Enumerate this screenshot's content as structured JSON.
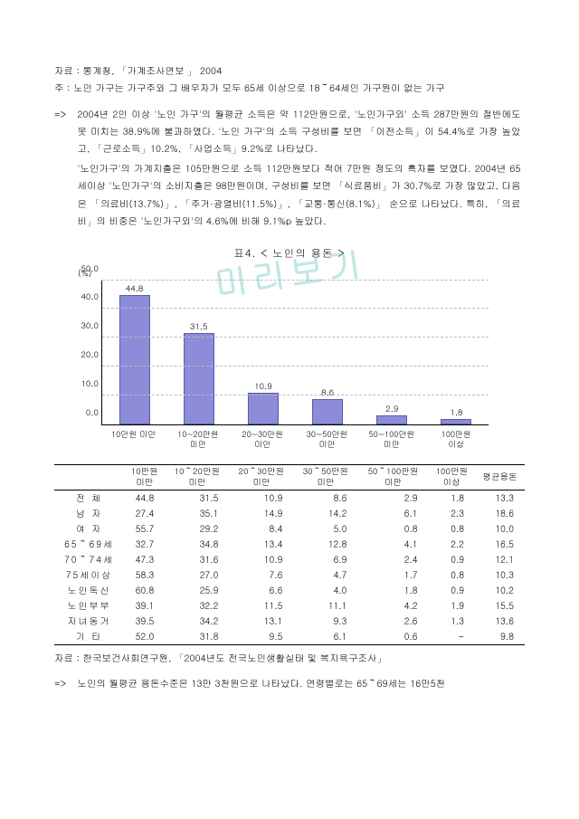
{
  "watermark": "미리보기",
  "source1_label": "자료 : ",
  "source1_text": "통계청, 「가계조사연보 」 2004",
  "note_label": "주 : ",
  "note_text": "노인 가구는 가구주와 그 배우자가 모두 65세 이상으로 18～64세인 가구원이 없는 가구",
  "arrow": "=>",
  "para1": "2004년 2인 이상 '노인 가구'의 월평균 소득은 약 112만원으로, '노인가구외' 소득 287만원의 절반에도 못 미치는 38.9%에 불과하였다. '노인 가구'의 소득 구성비를 보면 「이전소득」이 54.4%로 가장 높았고, 「근로소득」10.2%, 「사업소득」9.2%로 나타났다.",
  "para2": "'노인가구'의 가계지출은 105만원으로 소득 112만원보다 적어 7만원 정도의 흑자를 보였다. 2004년 65세이상 '노인가구'의 소비지출은 98만원이며, 구성비를 보면 「식료품비」가 30.7%로 가장 많았고, 다음은 「의료비(13.7%)」, 「주거·광열비(11.5%)」, 「교통·통신(8.1%)」 순으로 나타났다. 특히, 「의료비」의 비중은 '노인가구외'의 4.6%에 비해 9.1%p 높았다.",
  "chart_title": "표4. < 노인의 용돈 >",
  "chart": {
    "y_unit": "(%)",
    "ymax": 50,
    "ytick_step": 10,
    "yticks": [
      {
        "v": 0,
        "label": "0,0"
      },
      {
        "v": 10,
        "label": "10,0"
      },
      {
        "v": 20,
        "label": "20,0"
      },
      {
        "v": 30,
        "label": "30,0"
      },
      {
        "v": 40,
        "label": "40,0"
      },
      {
        "v": 50,
        "label": "50,0"
      }
    ],
    "bar_color": "#8c8cd9",
    "bar_border": "#5a5ab0",
    "bars": [
      {
        "label_l1": "10만원 미만",
        "label_l2": "",
        "value": 44.8,
        "display": "44,8"
      },
      {
        "label_l1": "10~20만원",
        "label_l2": "미만",
        "value": 31.5,
        "display": "31,5"
      },
      {
        "label_l1": "20~30만원",
        "label_l2": "미만",
        "value": 10.9,
        "display": "10,9"
      },
      {
        "label_l1": "30~50만원",
        "label_l2": "미만",
        "value": 8.6,
        "display": "8,6"
      },
      {
        "label_l1": "50~100만원",
        "label_l2": "미만",
        "value": 2.9,
        "display": "2,9"
      },
      {
        "label_l1": "100만원",
        "label_l2": "이상",
        "value": 1.8,
        "display": "1,8"
      }
    ]
  },
  "table": {
    "headers": [
      "",
      "10만원\n미만",
      "10～20만원\n미만",
      "20～30만원\n미만",
      "30～50만원\n미만",
      "50～100만원\n미만",
      "100만원\n이상",
      "평균용돈"
    ],
    "rows": [
      {
        "h": "전 체",
        "c": [
          "44.8",
          "31.5",
          "10.9",
          "8.6",
          "2.9",
          "1.8",
          "13.3"
        ]
      },
      {
        "h": "남 자",
        "c": [
          "27.4",
          "35.1",
          "14.9",
          "14.2",
          "6.1",
          "2.3",
          "18.6"
        ]
      },
      {
        "h": "여 자",
        "c": [
          "55.7",
          "29.2",
          "8.4",
          "5.0",
          "0.8",
          "0.8",
          "10.0"
        ]
      },
      {
        "h": "65～69세",
        "c": [
          "32.7",
          "34.8",
          "13.4",
          "12.8",
          "4.1",
          "2.2",
          "16.5"
        ]
      },
      {
        "h": "70～74세",
        "c": [
          "47.3",
          "31.6",
          "10.9",
          "6.9",
          "2.4",
          "0.9",
          "12.1"
        ]
      },
      {
        "h": "75세이상",
        "c": [
          "58.3",
          "27.0",
          "7.6",
          "4.7",
          "1.7",
          "0.8",
          "10.3"
        ]
      },
      {
        "h": "노인독신",
        "c": [
          "60.8",
          "25.9",
          "6.6",
          "4.0",
          "1.8",
          "0.9",
          "10.2"
        ]
      },
      {
        "h": "노인부부",
        "c": [
          "39.1",
          "32.2",
          "11.5",
          "11.1",
          "4.2",
          "1.9",
          "15.5"
        ]
      },
      {
        "h": "자녀동거",
        "c": [
          "39.5",
          "34.2",
          "13.1",
          "9.3",
          "2.6",
          "1.3",
          "13.6"
        ]
      },
      {
        "h": "기 타",
        "c": [
          "52.0",
          "31.8",
          "9.5",
          "6.1",
          "0.6",
          "-",
          "9.8"
        ]
      }
    ]
  },
  "source2_label": "자료 : ",
  "source2_text": "한국보건사회연구원, 「2004년도 전국노인생활실태 및 복지욕구조사」",
  "para3": "노인의 월평균 용돈수준은 13만 3천원으로 나타났다. 연령별로는 65～69세는 16만5천"
}
